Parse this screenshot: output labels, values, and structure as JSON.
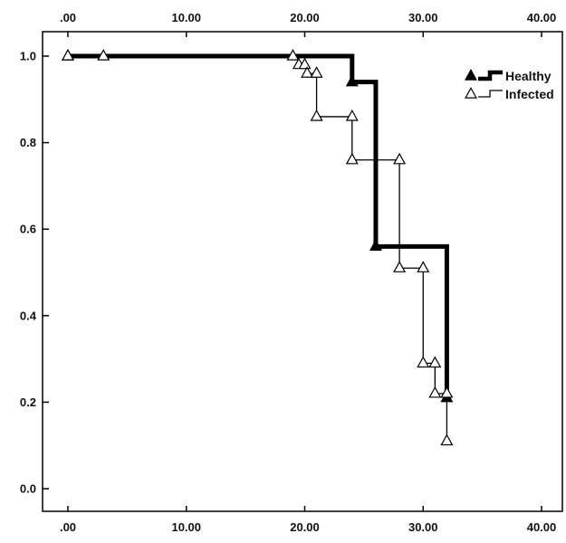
{
  "chart_data": {
    "type": "line",
    "step": true,
    "xlim": [
      0,
      40
    ],
    "ylim": [
      0,
      1.0
    ],
    "x_ticks": [
      0,
      10,
      20,
      30,
      40
    ],
    "x_tick_labels": [
      ".00",
      "10.00",
      "20.00",
      "30.00",
      "40.00"
    ],
    "y_ticks": [
      0,
      0.2,
      0.4,
      0.6,
      0.8,
      1.0
    ],
    "y_tick_labels": [
      "0.0",
      "0.2",
      "0.4",
      "0.6",
      "0.8",
      "1.0"
    ],
    "grid": false,
    "legend_position": "top-right",
    "series": [
      {
        "name": "Healthy",
        "color": "#000000",
        "marker": "filled-triangle",
        "line": "thick",
        "x": [
          0,
          24,
          26,
          32
        ],
        "values": [
          1.0,
          0.94,
          0.56,
          0.21
        ]
      },
      {
        "name": "Infected",
        "color": "#000000",
        "marker": "open-triangle",
        "line": "thin",
        "x": [
          0,
          3,
          19,
          19.5,
          20,
          20.2,
          21,
          21,
          24,
          24,
          28,
          28,
          30,
          30,
          31,
          31,
          32,
          32
        ],
        "values": [
          1.0,
          1.0,
          1.0,
          0.98,
          0.98,
          0.96,
          0.96,
          0.86,
          0.86,
          0.76,
          0.76,
          0.51,
          0.51,
          0.29,
          0.29,
          0.22,
          0.22,
          0.11
        ]
      }
    ]
  }
}
